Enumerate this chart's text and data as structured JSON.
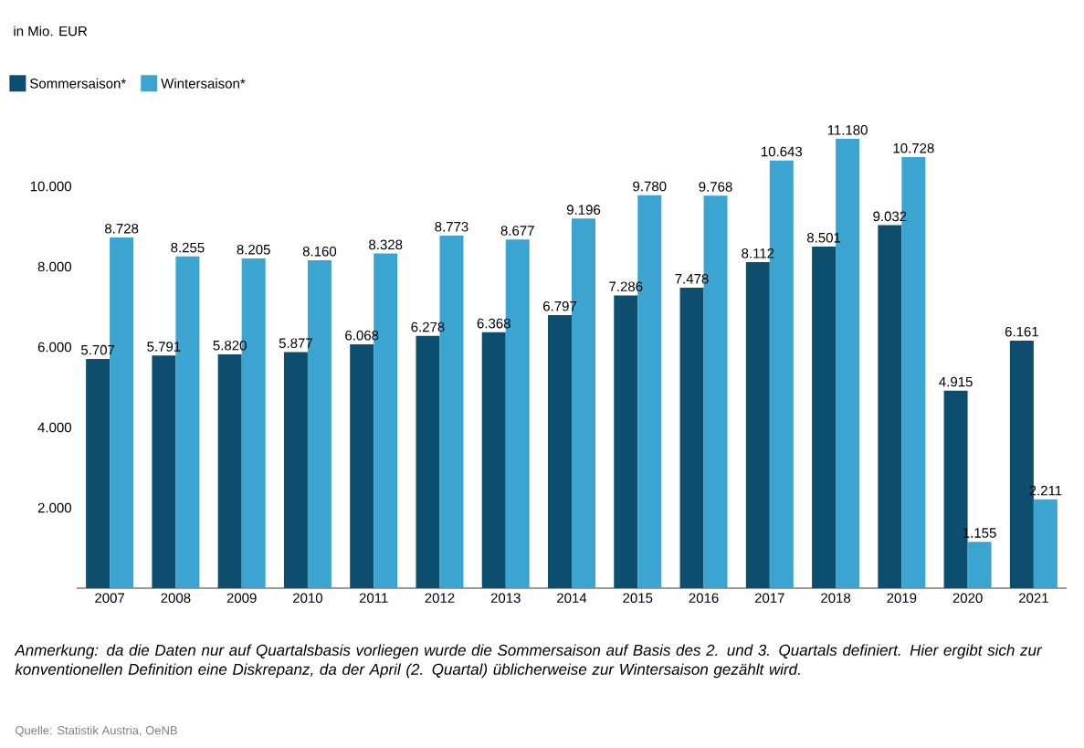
{
  "chart_data": {
    "type": "bar",
    "categories": [
      "2007",
      "2008",
      "2009",
      "2010",
      "2011",
      "2012",
      "2013",
      "2014",
      "2015",
      "2016",
      "2017",
      "2018",
      "2019",
      "2020",
      "2021"
    ],
    "series": [
      {
        "name": "Sommersaison*",
        "color": "#0d4e6e",
        "values": [
          5707,
          5791,
          5820,
          5877,
          6068,
          6278,
          6368,
          6797,
          7286,
          7478,
          8112,
          8501,
          9032,
          4915,
          6161
        ],
        "value_labels": [
          "5.707",
          "5.791",
          "5.820",
          "5.877",
          "6.068",
          "6.278",
          "6.368",
          "6.797",
          "7.286",
          "7.478",
          "8.112",
          "8.501",
          "9.032",
          "4.915",
          "6.161"
        ]
      },
      {
        "name": "Wintersaison*",
        "color": "#3ba4d1",
        "values": [
          8728,
          8255,
          8205,
          8160,
          8328,
          8773,
          8677,
          9196,
          9780,
          9768,
          10643,
          11180,
          10728,
          1155,
          2211
        ],
        "value_labels": [
          "8.728",
          "8.255",
          "8.205",
          "8.160",
          "8.328",
          "8.773",
          "8.677",
          "9.196",
          "9.780",
          "9.768",
          "10.643",
          "11.180",
          "10.728",
          "1.155",
          "2.211"
        ]
      }
    ],
    "ylim": [
      0,
      11200
    ],
    "yticks": [
      {
        "value": 0,
        "label": null
      },
      {
        "value": 2000,
        "label": "2.000"
      },
      {
        "value": 4000,
        "label": "4.000"
      },
      {
        "value": 6000,
        "label": "6.000"
      },
      {
        "value": 8000,
        "label": "8.000"
      },
      {
        "value": 10000,
        "label": "10.000"
      }
    ],
    "legend": "top left",
    "annotations": [
      "in Mio. EUR",
      "*Anmerkung: da die Daten nur auf Quartalsbasis vorliegen wurde die Sommersaison auf Basis des 2. und 3. Quartals definiert. Hier ergibt sich zur konventionellen Definition eine Diskrepanz, da der April (2. Quartal) üblicherweise zur Wintersaison gezählt wird.*",
      "Quelle: Statistik Austria, OeNB"
    ]
  }
}
